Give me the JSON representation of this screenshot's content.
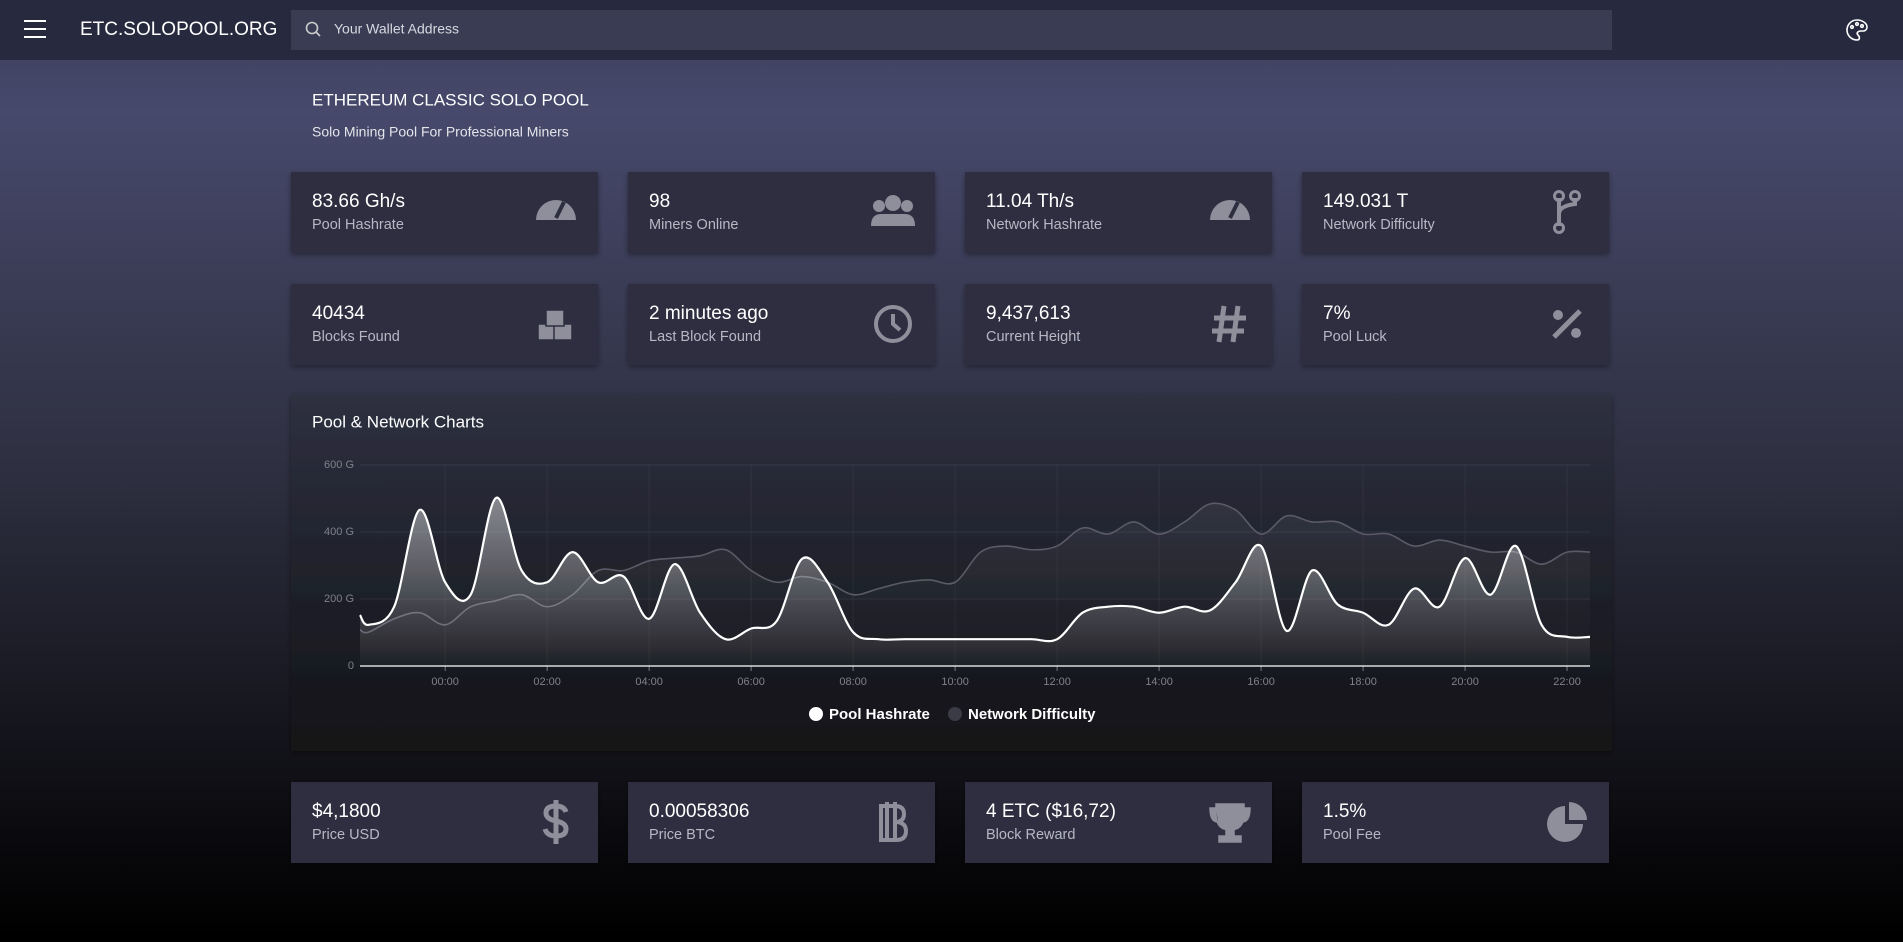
{
  "header": {
    "brand": "ETC.SOLOPOOL.ORG",
    "search_placeholder": "Your Wallet Address"
  },
  "intro": {
    "title": "ETHEREUM CLASSIC SOLO POOL",
    "subtitle": "Solo Mining Pool For Professional Miners"
  },
  "stats": [
    {
      "value": "83.66 Gh/s",
      "label": "Pool Hashrate"
    },
    {
      "value": "98",
      "label": "Miners Online"
    },
    {
      "value": "11.04 Th/s",
      "label": "Network Hashrate"
    },
    {
      "value": "149.031 T",
      "label": "Network Difficulty"
    },
    {
      "value": "40434",
      "label": "Blocks Found"
    },
    {
      "value": "2 minutes ago",
      "label": "Last Block Found"
    },
    {
      "value": "9,437,613",
      "label": "Current Height"
    },
    {
      "value": "7%",
      "label": "Pool Luck"
    },
    {
      "value": "$4,1800",
      "label": "Price USD"
    },
    {
      "value": "0.00058306",
      "label": "Price BTC"
    },
    {
      "value": "4 ETC ($16,72)",
      "label": "Block Reward"
    },
    {
      "value": "1.5%",
      "label": "Pool Fee"
    }
  ],
  "chart_data": {
    "type": "line",
    "title": "Pool & Network Charts",
    "x": [
      -1.67,
      -1.5,
      -1,
      -0.5,
      0,
      0.5,
      1,
      1.5,
      2,
      2.5,
      3,
      3.5,
      4,
      4.5,
      5,
      5.5,
      6,
      6.5,
      7,
      7.5,
      8,
      8.5,
      9,
      9.5,
      10,
      10.5,
      11,
      11.5,
      12,
      12.5,
      13,
      13.5,
      14,
      14.5,
      15,
      15.5,
      16,
      16.5,
      17,
      17.5,
      18,
      18.5,
      19,
      19.5,
      20,
      20.5,
      21,
      21.5,
      22,
      22.45
    ],
    "series": [
      {
        "name": "Pool Hashrate",
        "color": "#ffffff",
        "values": [
          152,
          123,
          177,
          466,
          250,
          213,
          502,
          285,
          250,
          340,
          250,
          267,
          141,
          304,
          159,
          80,
          112,
          134,
          320,
          250,
          101,
          80,
          80,
          80,
          80,
          80,
          80,
          80,
          80,
          159,
          177,
          177,
          159,
          177,
          166,
          250,
          358,
          105,
          285,
          184,
          159,
          123,
          231,
          177,
          322,
          213,
          358,
          123,
          87,
          87
        ]
      },
      {
        "name": "Network Difficulty",
        "color": "#5a5b66",
        "values": [
          108,
          101,
          141,
          159,
          123,
          177,
          195,
          213,
          177,
          213,
          285,
          285,
          314,
          322,
          329,
          347,
          285,
          250,
          267,
          250,
          213,
          231,
          250,
          257,
          250,
          340,
          358,
          347,
          358,
          412,
          394,
          430,
          394,
          430,
          484,
          466,
          394,
          448,
          430,
          430,
          394,
          394,
          358,
          376,
          358,
          340,
          340,
          304,
          340,
          340
        ]
      }
    ],
    "xlim": [
      -1.67,
      22.45
    ],
    "xticks": [
      {
        "value": 0,
        "label": "00:00"
      },
      {
        "value": 2,
        "label": "02:00"
      },
      {
        "value": 4,
        "label": "04:00"
      },
      {
        "value": 6,
        "label": "06:00"
      },
      {
        "value": 8,
        "label": "08:00"
      },
      {
        "value": 10,
        "label": "10:00"
      },
      {
        "value": 12,
        "label": "12:00"
      },
      {
        "value": 14,
        "label": "14:00"
      },
      {
        "value": 16,
        "label": "16:00"
      },
      {
        "value": 18,
        "label": "18:00"
      },
      {
        "value": 20,
        "label": "20:00"
      },
      {
        "value": 22,
        "label": "22:00"
      }
    ],
    "ylim": [
      0,
      600
    ],
    "yticks": [
      0,
      {
        "value": 200,
        "label": "200 G"
      },
      {
        "value": 400,
        "label": "400 G"
      },
      {
        "value": 600,
        "label": "600 G"
      }
    ],
    "grid": true,
    "legend": "bottom"
  }
}
